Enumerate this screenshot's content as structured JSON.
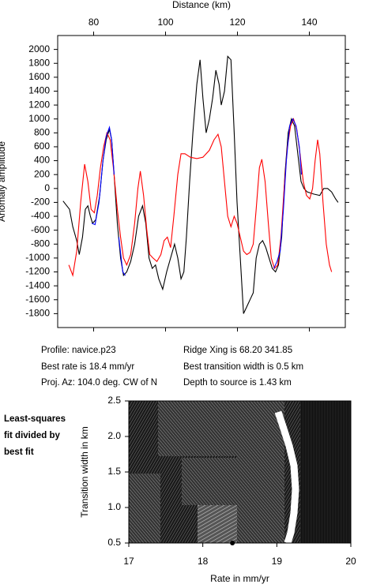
{
  "chart_data": [
    {
      "type": "line",
      "x_label": "Distance (km)",
      "y_label": "Anomaly amplitude",
      "xlim": [
        70,
        150
      ],
      "xticks": [
        80,
        100,
        120,
        140
      ],
      "ylim": [
        -2000,
        2200
      ],
      "yticks": [
        -1800,
        -1600,
        -1400,
        -1200,
        -1000,
        -800,
        -600,
        -400,
        -200,
        0,
        200,
        400,
        600,
        800,
        1000,
        1200,
        1400,
        1600,
        1800,
        2000
      ],
      "series": [
        {
          "color": "#000000",
          "x": [
            71.5,
            73.3,
            74.2,
            75.3,
            76.0,
            76.9,
            77.7,
            78.4,
            79.1,
            79.7,
            80.6,
            81.7,
            82.6,
            83.5,
            84.4,
            85.0,
            85.7,
            86.6,
            87.5,
            88.3,
            89.2,
            90.3,
            91.4,
            92.5,
            93.6,
            94.5,
            95.4,
            96.3,
            97.2,
            98.1,
            99.2,
            100.3,
            101.4,
            102.5,
            103.4,
            104.3,
            105.1,
            105.8,
            106.7,
            107.6,
            108.7,
            109.6,
            110.4,
            111.3,
            112.2,
            113.1,
            114.0,
            114.9,
            115.5,
            116.4,
            117.3,
            118.2,
            119.1,
            119.9,
            120.8,
            121.7,
            122.6,
            123.5,
            124.4,
            125.2,
            126.1,
            127.0,
            127.9,
            128.8,
            129.7,
            130.6,
            131.4,
            132.3,
            133.2,
            134.1,
            135.0,
            135.9,
            136.8,
            137.7,
            138.5,
            139.4,
            141.2,
            142.9,
            144.0,
            145.1,
            146.2,
            147.3,
            148.0
          ],
          "values": [
            -180,
            -300,
            -550,
            -750,
            -950,
            -700,
            -300,
            -250,
            -400,
            -500,
            -450,
            -100,
            400,
            700,
            850,
            700,
            200,
            -500,
            -1000,
            -1250,
            -1200,
            -1050,
            -800,
            -400,
            -250,
            -500,
            -1000,
            -1150,
            -1100,
            -1300,
            -1450,
            -1200,
            -1000,
            -800,
            -1000,
            -1300,
            -1200,
            -700,
            100,
            800,
            1500,
            1850,
            1300,
            800,
            1000,
            1300,
            1700,
            1500,
            1200,
            1400,
            1900,
            1850,
            800,
            -200,
            -1000,
            -1800,
            -1700,
            -1600,
            -1500,
            -1000,
            -800,
            -750,
            -850,
            -1000,
            -1150,
            -1200,
            -1100,
            -700,
            200,
            800,
            1000,
            900,
            500,
            100,
            0,
            -50,
            -80,
            -100,
            0,
            0,
            -50,
            -150,
            -200
          ]
        },
        {
          "color": "#ff0000",
          "x": [
            73.1,
            74.2,
            75.3,
            76.4,
            77.5,
            78.4,
            79.3,
            80.2,
            81.0,
            81.9,
            82.8,
            83.7,
            84.6,
            85.5,
            86.6,
            87.5,
            88.3,
            89.2,
            90.3,
            91.4,
            92.3,
            93.0,
            93.9,
            94.8,
            95.6,
            96.5,
            97.6,
            98.7,
            99.6,
            100.5,
            101.4,
            102.3,
            103.4,
            104.3,
            105.4,
            106.9,
            108.7,
            110.4,
            112.2,
            113.5,
            114.6,
            115.5,
            116.4,
            117.3,
            118.2,
            119.1,
            119.9,
            120.8,
            121.7,
            122.6,
            123.5,
            124.4,
            125.2,
            126.1,
            126.8,
            127.7,
            128.6,
            129.4,
            130.3,
            131.2,
            132.1,
            133.0,
            133.9,
            134.8,
            135.6,
            136.5,
            137.4,
            138.3,
            139.2,
            140.1,
            140.9,
            141.6,
            142.3,
            142.9,
            143.8,
            144.7,
            145.6,
            146.2
          ],
          "values": [
            -1100,
            -1250,
            -900,
            -200,
            350,
            100,
            -300,
            -350,
            -100,
            300,
            600,
            800,
            700,
            300,
            -300,
            -700,
            -1000,
            -1100,
            -950,
            -500,
            0,
            250,
            -100,
            -600,
            -950,
            -1000,
            -1050,
            -950,
            -750,
            -700,
            -850,
            -400,
            200,
            500,
            500,
            450,
            430,
            450,
            550,
            700,
            780,
            600,
            100,
            -400,
            -550,
            -400,
            -500,
            -700,
            -900,
            -950,
            -920,
            -800,
            -300,
            300,
            420,
            100,
            -500,
            -1000,
            -1150,
            -1100,
            -700,
            0,
            600,
            900,
            1000,
            850,
            500,
            100,
            -100,
            -150,
            0,
            400,
            700,
            500,
            -200,
            -800,
            -1100,
            -1200
          ]
        },
        {
          "color": "#0000ff",
          "x": [
            79.5,
            80.4,
            81.5,
            82.6,
            83.5,
            84.4,
            85.0,
            85.7
          ],
          "values": [
            -500,
            -520,
            -200,
            400,
            750,
            880,
            700,
            200
          ]
        },
        {
          "color": "#0000ff",
          "x": [
            87.0,
            88.1,
            88.8
          ],
          "values": [
            -700,
            -1200,
            -1250
          ]
        },
        {
          "color": "#0000ff",
          "x": [
            130.1,
            131.0,
            131.9,
            132.8,
            133.6,
            134.5,
            135.4,
            136.3,
            137.2,
            137.8
          ],
          "values": [
            -1150,
            -1050,
            -900,
            -300,
            400,
            900,
            1000,
            900,
            600,
            200
          ]
        }
      ],
      "annotations": [
        "Profile: navice.p23",
        "Ridge Xing is 68.20 341.85",
        "Best rate is 18.4 mm/yr",
        "Best transition width is 0.5 km",
        "Proj. Az: 104.0 deg. CW of N",
        "Depth to source is   1.43 km"
      ]
    },
    {
      "type": "scatter",
      "x_label": "Rate in mm/yr",
      "y_label": "Transition width in km",
      "annotation": [
        "Least-squares",
        "fit divided by",
        "best fit"
      ],
      "xlim": [
        17,
        20
      ],
      "xticks": [
        17,
        18,
        19,
        20
      ],
      "ylim": [
        0.5,
        2.5
      ],
      "yticks": [
        0.5,
        {
          "value": 1,
          "label": "1.0"
        },
        1.5,
        {
          "value": 2,
          "label": "2.0"
        },
        2.5
      ],
      "color": "#000000",
      "x": [
        18.4
      ],
      "values": [
        0.5
      ]
    }
  ]
}
